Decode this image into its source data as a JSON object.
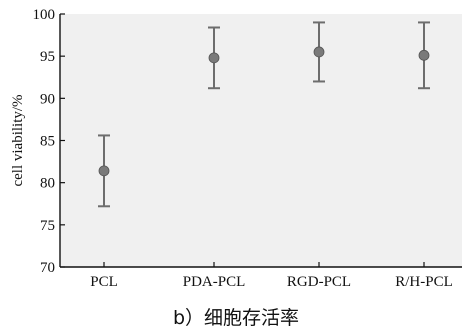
{
  "chart_data": {
    "type": "scatter",
    "categories": [
      "PCL",
      "PDA-PCL",
      "RGD-PCL",
      "R/H-PCL"
    ],
    "values": [
      81.4,
      94.8,
      95.5,
      95.1
    ],
    "error_low": [
      77.2,
      91.2,
      92.0,
      91.2
    ],
    "error_high": [
      85.6,
      98.4,
      99.0,
      99.0
    ],
    "ylabel": "cell viability/%",
    "ylim": [
      70,
      100
    ],
    "yticks": [
      70,
      75,
      80,
      85,
      90,
      95,
      100
    ],
    "grid": false,
    "caption": "b）细胞存活率",
    "colors": {
      "background": "#f0f0f0",
      "marker": "#7a7a7a",
      "errorbar": "#6d6d6d",
      "axis": "#111111"
    }
  }
}
